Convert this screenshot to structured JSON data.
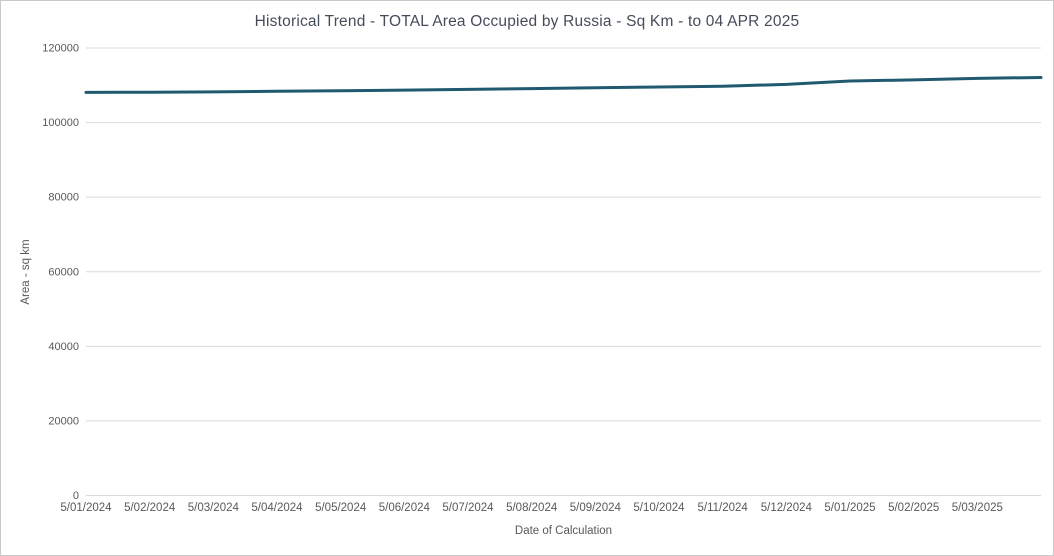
{
  "window": {
    "background": "#ffffff",
    "border_color": "#c9c9c9"
  },
  "chart_data": {
    "type": "line",
    "title": "Historical Trend - TOTAL Area Occupied by Russia - Sq Km - to 04 APR 2025",
    "xlabel": "Date of Calculation",
    "ylabel": "Area - sq km",
    "ylim": [
      0,
      120000
    ],
    "y_ticks": [
      0,
      20000,
      40000,
      60000,
      80000,
      100000,
      120000
    ],
    "x_tick_labels": [
      "5/01/2024",
      "5/02/2024",
      "5/03/2024",
      "5/04/2024",
      "5/05/2024",
      "5/06/2024",
      "5/07/2024",
      "5/08/2024",
      "5/09/2024",
      "5/10/2024",
      "5/11/2024",
      "5/12/2024",
      "5/01/2025",
      "5/02/2025",
      "5/03/2025"
    ],
    "grid": "horizontal-only",
    "legend": "none",
    "colors": {
      "line": "#215a70",
      "grid": "#d9d9d9",
      "title_text": "#454c59",
      "axis_text": "#595959"
    },
    "series": [
      {
        "name": "TOTAL Area Occupied by Russia (sq km)",
        "x": [
          "5/01/2024",
          "5/02/2024",
          "5/03/2024",
          "5/04/2024",
          "5/05/2024",
          "5/06/2024",
          "5/07/2024",
          "5/08/2024",
          "5/09/2024",
          "5/10/2024",
          "5/11/2024",
          "5/12/2024",
          "5/01/2025",
          "5/02/2025",
          "5/03/2025",
          "4/04/2025"
        ],
        "values": [
          108100,
          108150,
          108250,
          108400,
          108550,
          108700,
          108900,
          109100,
          109350,
          109550,
          109750,
          110250,
          111150,
          111450,
          111850,
          112100
        ]
      }
    ]
  }
}
